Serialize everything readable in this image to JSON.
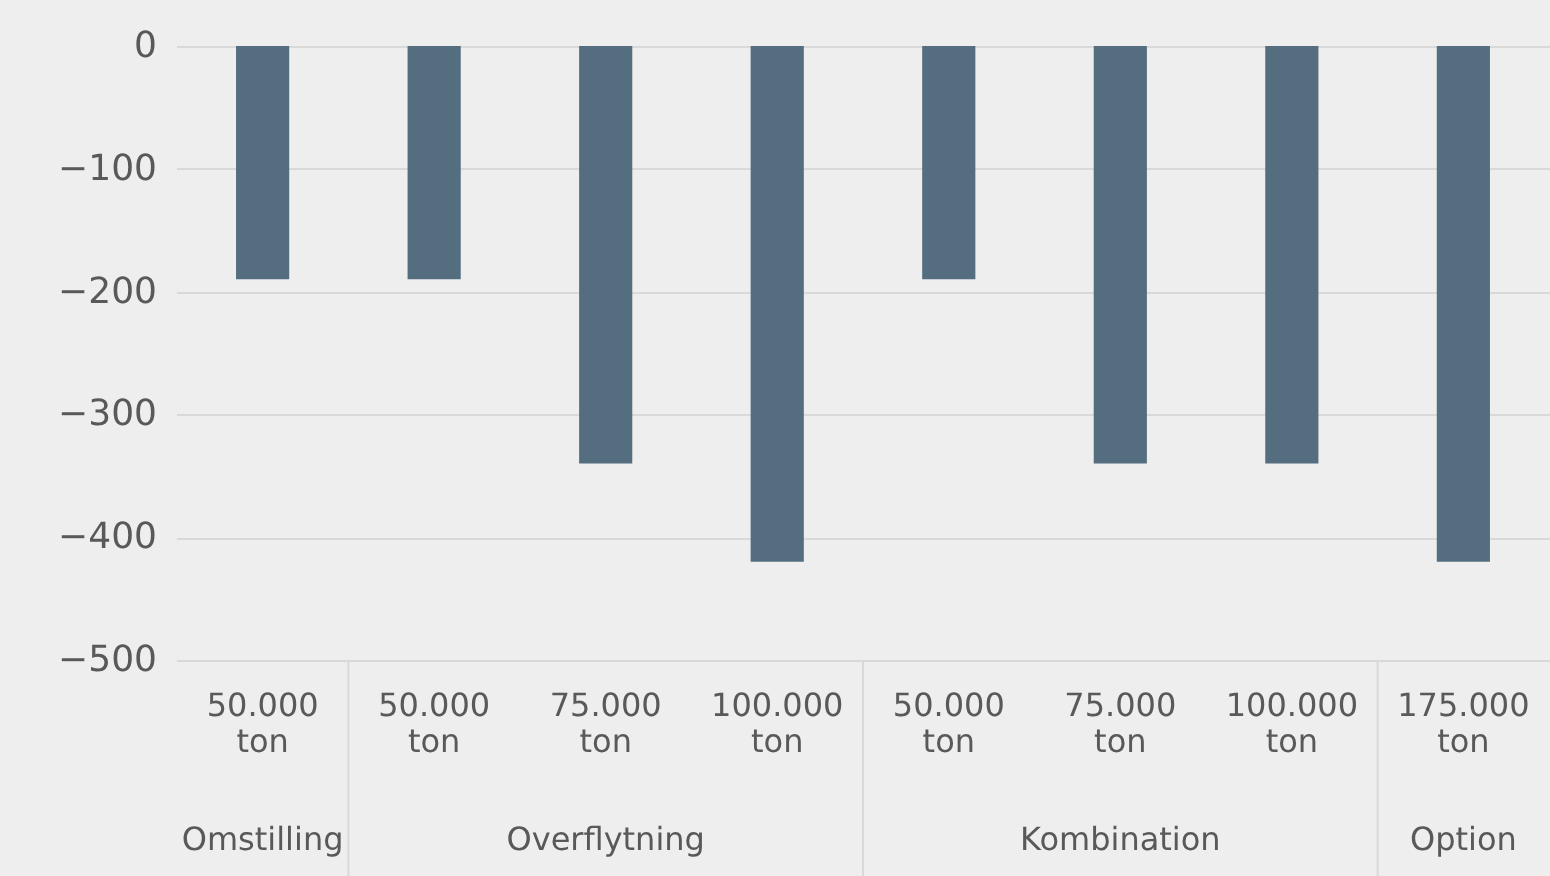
{
  "chart_data": {
    "type": "bar",
    "categories": [
      "50.000 ton",
      "50.000 ton",
      "75.000 ton",
      "100.000 ton",
      "50.000 ton",
      "75.000 ton",
      "100.000 ton",
      "175.000 ton"
    ],
    "values": [
      -190,
      -190,
      -340,
      -420,
      -190,
      -340,
      -340,
      -420
    ],
    "color": "#546e80",
    "ylim": [
      -500,
      0
    ],
    "yticks": [
      -500,
      -400,
      -300,
      -200,
      -100,
      0
    ],
    "grid": "y",
    "annotations": [
      "Omstilling",
      "Overflytning",
      "Kombination",
      "Option"
    ]
  }
}
